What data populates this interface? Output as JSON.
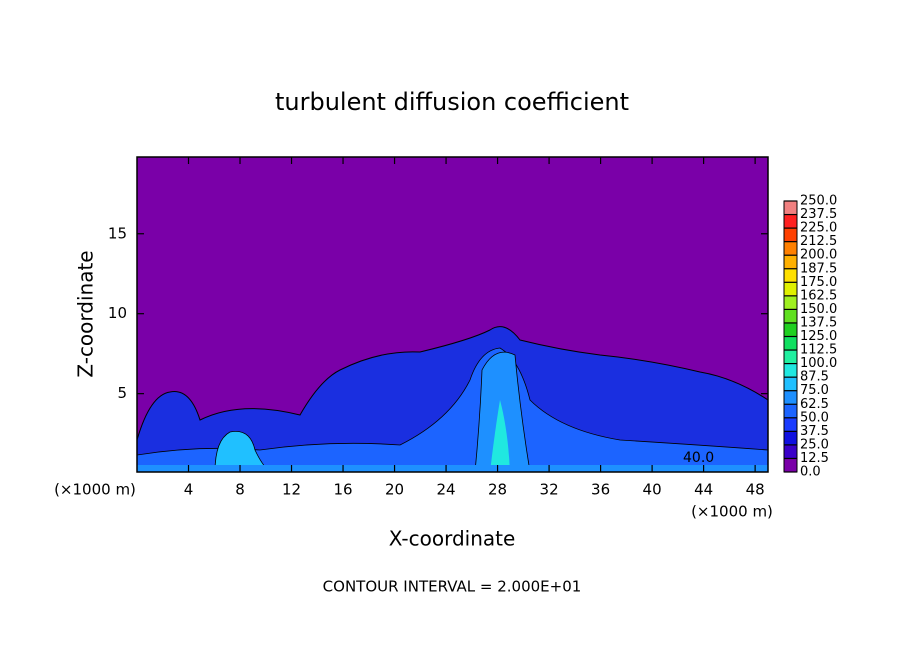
{
  "chart_data": {
    "type": "contour",
    "title": "turbulent diffusion coefficient",
    "xlabel": "X-coordinate",
    "ylabel": "Z-coordinate",
    "x_unit": "(×1000 m)",
    "y_unit": "(×1000 m)",
    "footer": "CONTOUR INTERVAL = 2.000E+01",
    "annotation": "40.0",
    "xlim": [
      0,
      49
    ],
    "ylim": [
      0.1,
      19.8
    ],
    "xticks": [
      4,
      8,
      12,
      16,
      20,
      24,
      28,
      32,
      36,
      40,
      44,
      48
    ],
    "yticks": [
      5,
      10,
      15
    ],
    "colorbar": {
      "levels": [
        {
          "value": 0,
          "label": "0.0"
        },
        {
          "value": 12.5,
          "label": "12.5"
        },
        {
          "value": 25,
          "label": "25.0"
        },
        {
          "value": 37.5,
          "label": "37.5"
        },
        {
          "value": 50,
          "label": "50.0"
        },
        {
          "value": 62.5,
          "label": "62.5"
        },
        {
          "value": 75,
          "label": "75.0"
        },
        {
          "value": 87.5,
          "label": "87.5"
        },
        {
          "value": 100,
          "label": "100.0"
        },
        {
          "value": 112.5,
          "label": "112.5"
        },
        {
          "value": 125,
          "label": "125.0"
        },
        {
          "value": 137.5,
          "label": "137.5"
        },
        {
          "value": 150,
          "label": "150.0"
        },
        {
          "value": 162.5,
          "label": "162.5"
        },
        {
          "value": 175,
          "label": "175.0"
        },
        {
          "value": 187.5,
          "label": "187.5"
        },
        {
          "value": 200,
          "label": "200.0"
        },
        {
          "value": 212.5,
          "label": "212.5"
        },
        {
          "value": 225,
          "label": "225.0"
        },
        {
          "value": 237.5,
          "label": "237.5"
        },
        {
          "value": 250,
          "label": "250.0"
        }
      ],
      "colors": [
        "#7a00a8",
        "#3a00c8",
        "#1010e0",
        "#1a3cff",
        "#1c64ff",
        "#1e90ff",
        "#20c0ff",
        "#20e8e0",
        "#20f0a0",
        "#10e060",
        "#20d020",
        "#60e020",
        "#a0f020",
        "#e0f000",
        "#ffe000",
        "#ffb000",
        "#ff8000",
        "#ff4000",
        "#ff2020",
        "#f08080"
      ]
    }
  }
}
